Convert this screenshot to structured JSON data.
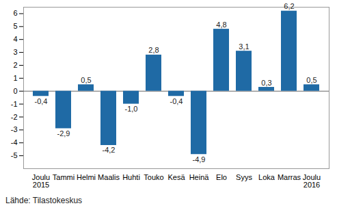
{
  "chart_data": {
    "type": "bar",
    "categories": [
      "Joulu\n2015",
      "Tammi",
      "Helmi",
      "Maalis",
      "Huhti",
      "Touko",
      "Kesä",
      "Heinä",
      "Elo",
      "Syys",
      "Loka",
      "Marras",
      "Joulu\n2016"
    ],
    "values": [
      -0.4,
      -2.9,
      0.5,
      -4.2,
      -1.0,
      2.8,
      -0.4,
      -4.9,
      4.8,
      3.1,
      0.3,
      6.2,
      0.5
    ],
    "value_labels": [
      "-0,4",
      "-2,9",
      "0,5",
      "-4,2",
      "-1,0",
      "2,8",
      "-0,4",
      "-4,9",
      "4,8",
      "3,1",
      "0,3",
      "6,2",
      "0,5"
    ],
    "data_labels": true,
    "color": "#1f6aa5",
    "ylim": [
      -6,
      6.5
    ],
    "yticks": [
      -5,
      -4,
      -3,
      -2,
      -1,
      0,
      1,
      2,
      3,
      4,
      5,
      6
    ],
    "grid": false,
    "caption": "Lähde: Tilastokeskus"
  }
}
